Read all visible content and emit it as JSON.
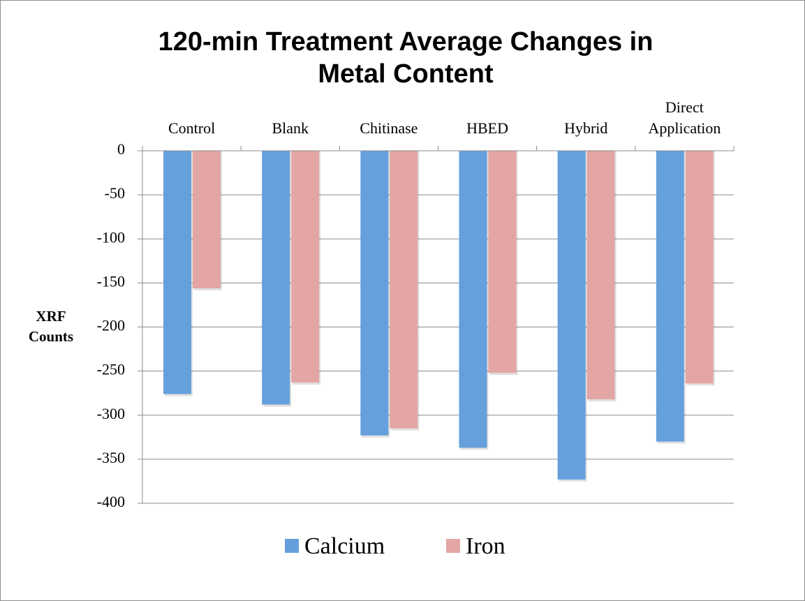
{
  "chart_data": {
    "type": "bar",
    "title": "120-min Treatment Average Changes in Metal Content",
    "y_label": "XRF Counts",
    "categories": [
      "Control",
      "Blank",
      "Chitinase",
      "HBED",
      "Hybrid",
      "Direct Application"
    ],
    "series": [
      {
        "name": "Calcium",
        "color": "#659fdc",
        "values": [
          -276,
          -288,
          -323,
          -337,
          -373,
          -330
        ]
      },
      {
        "name": "Iron",
        "color": "#e3a6a4",
        "values": [
          -156,
          -263,
          -315,
          -252,
          -282,
          -264
        ]
      }
    ],
    "ylim": [
      -400,
      0
    ],
    "yticks": [
      0,
      -50,
      -100,
      -150,
      -200,
      -250,
      -300,
      -350,
      -400
    ],
    "grid": true,
    "legend": "bottom"
  }
}
